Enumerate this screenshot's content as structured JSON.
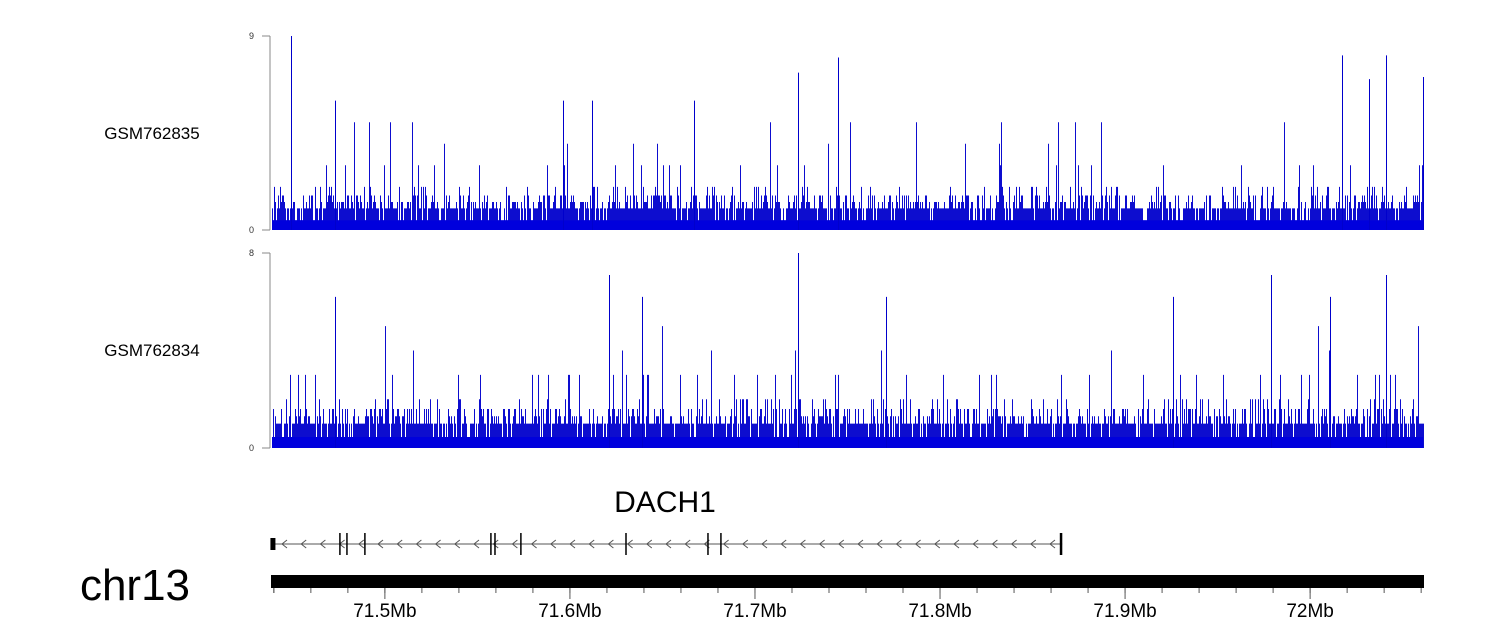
{
  "chart_data": {
    "type": "genome-tracks",
    "chromosome": "chr13",
    "xlim_mb": [
      71.439,
      72.061
    ],
    "axis": {
      "major_ticks_mb": [
        71.5,
        71.6,
        71.7,
        71.8,
        71.9,
        72.0
      ],
      "major_tick_labels": [
        "71.5Mb",
        "71.6Mb",
        "71.7Mb",
        "71.8Mb",
        "71.9Mb",
        "72Mb"
      ],
      "minor_tick_step_mb": 0.02
    },
    "tracks": [
      {
        "name": "GSM762835",
        "type": "histogram",
        "ylim": [
          0,
          9
        ],
        "ytick_labels": [
          "9",
          "0"
        ],
        "color": "#0000cc",
        "seed": 7,
        "peaks": [
          {
            "x_mb": 71.449,
            "y": 9
          },
          {
            "x_mb": 71.723,
            "y": 7.3
          },
          {
            "x_mb": 71.745,
            "y": 8.0
          },
          {
            "x_mb": 72.017,
            "y": 8.1
          },
          {
            "x_mb": 72.041,
            "y": 8.1
          },
          {
            "x_mb": 72.032,
            "y": 7.0
          },
          {
            "x_mb": 72.061,
            "y": 7.1
          },
          {
            "x_mb": 71.473,
            "y": 6.0
          },
          {
            "x_mb": 71.596,
            "y": 6.0
          },
          {
            "x_mb": 71.612,
            "y": 6.0
          },
          {
            "x_mb": 71.667,
            "y": 6.0
          }
        ]
      },
      {
        "name": "GSM762834",
        "type": "histogram",
        "ylim": [
          0,
          8
        ],
        "ytick_labels": [
          "8",
          "0"
        ],
        "color": "#0000cc",
        "seed": 19,
        "peaks": [
          {
            "x_mb": 71.723,
            "y": 8
          },
          {
            "x_mb": 71.621,
            "y": 7.1
          },
          {
            "x_mb": 72.041,
            "y": 7.1
          },
          {
            "x_mb": 71.473,
            "y": 6.2
          },
          {
            "x_mb": 71.979,
            "y": 7.1
          },
          {
            "x_mb": 71.639,
            "y": 6.2
          },
          {
            "x_mb": 71.771,
            "y": 6.2
          },
          {
            "x_mb": 71.926,
            "y": 6.2
          },
          {
            "x_mb": 72.011,
            "y": 6.2
          }
        ]
      }
    ],
    "gene": {
      "name": "DACH1",
      "strand": "-",
      "start_mb": 71.439,
      "end_mb": 71.866,
      "exons_mb": [
        71.4395,
        71.4757,
        71.4795,
        71.4892,
        71.5573,
        71.5595,
        71.5735,
        71.6303,
        71.6746,
        71.6816,
        71.8654
      ]
    }
  }
}
